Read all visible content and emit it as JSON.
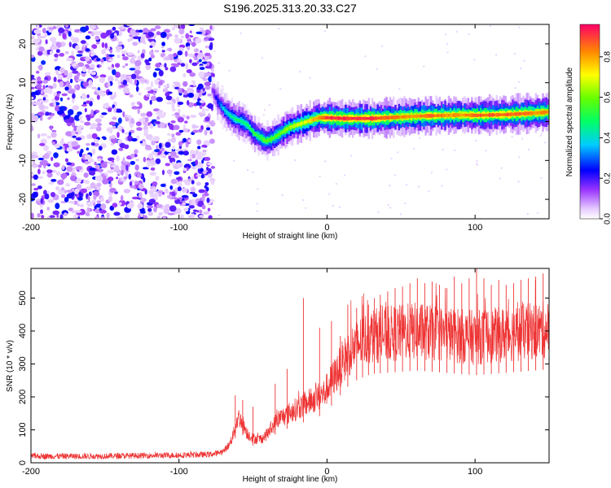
{
  "title": "S196.2025.313.20.33.C27",
  "chart_data": [
    {
      "type": "heatmap",
      "name": "spectrogram",
      "xlabel": "Height of straight line (km)",
      "ylabel": "Frequency (Hz)",
      "xlim": [
        -200,
        150
      ],
      "ylim": [
        -25,
        25
      ],
      "xticks": [
        -200,
        -100,
        0,
        100
      ],
      "yticks": [
        -20,
        -10,
        0,
        10,
        20
      ],
      "colorbar": {
        "label": "Normalized spectral amplitude",
        "range": [
          0.0,
          0.96
        ],
        "ticks": [
          0.0,
          0.2,
          0.4,
          0.6,
          0.8
        ],
        "tick_labels": [
          "0.0",
          "0.2",
          "0.4",
          "0.6",
          "0.8"
        ]
      },
      "noise_region": {
        "x_from": -200,
        "x_to": -77,
        "description_amplitude": [
          0.05,
          0.3
        ]
      },
      "ridge": {
        "x": [
          -78,
          -74,
          -70,
          -66,
          -62,
          -58,
          -54,
          -50,
          -46,
          -42,
          -38,
          -34,
          -30,
          -26,
          -22,
          -18,
          -14,
          -10,
          -6,
          -2,
          0,
          10,
          20,
          30,
          40,
          50,
          60,
          70,
          80,
          90,
          100,
          110,
          120,
          130,
          140,
          150
        ],
        "freq": [
          8.0,
          5.0,
          3.0,
          1.5,
          0.5,
          0.0,
          -1.0,
          -3.0,
          -4.0,
          -5.0,
          -4.5,
          -3.5,
          -2.5,
          -1.5,
          -1.0,
          -0.5,
          0.0,
          0.5,
          1.0,
          1.0,
          1.0,
          0.8,
          0.8,
          0.8,
          1.0,
          1.2,
          1.4,
          1.5,
          1.6,
          1.7,
          1.6,
          1.7,
          1.8,
          2.0,
          2.2,
          2.5
        ],
        "amplitude": [
          0.15,
          0.3,
          0.4,
          0.45,
          0.5,
          0.5,
          0.5,
          0.55,
          0.55,
          0.6,
          0.6,
          0.6,
          0.65,
          0.65,
          0.7,
          0.7,
          0.75,
          0.8,
          0.85,
          0.9,
          0.95,
          0.95,
          0.95,
          0.95,
          0.9,
          0.85,
          0.85,
          0.9,
          0.85,
          0.85,
          0.9,
          0.9,
          0.9,
          0.9,
          0.85,
          0.85
        ]
      }
    },
    {
      "type": "line",
      "name": "snr",
      "xlabel": "Height of straight line (km)",
      "ylabel": "SNR (10 * v/v)",
      "xlim": [
        -200,
        150
      ],
      "ylim": [
        0,
        590
      ],
      "xticks": [
        -200,
        -100,
        0,
        100
      ],
      "yticks": [
        0,
        100,
        200,
        300,
        400,
        500
      ],
      "color": "#ee3333",
      "series": [
        {
          "name": "SNR",
          "x": [
            -200,
            -180,
            -160,
            -140,
            -120,
            -100,
            -90,
            -80,
            -75,
            -70,
            -66,
            -63,
            -60,
            -57,
            -54,
            -50,
            -46,
            -42,
            -38,
            -34,
            -30,
            -26,
            -22,
            -18,
            -14,
            -10,
            -6,
            -2,
            2,
            6,
            10,
            14,
            18,
            22,
            26,
            30,
            40,
            50,
            60,
            70,
            80,
            90,
            100,
            110,
            120,
            130,
            140,
            150
          ],
          "y": [
            20,
            20,
            20,
            21,
            22,
            23,
            24,
            25,
            28,
            35,
            55,
            90,
            140,
            120,
            90,
            75,
            70,
            80,
            100,
            130,
            140,
            150,
            160,
            170,
            180,
            190,
            200,
            210,
            240,
            270,
            300,
            330,
            350,
            365,
            375,
            385,
            390,
            395,
            400,
            395,
            390,
            385,
            380,
            385,
            390,
            395,
            400,
            405
          ]
        }
      ],
      "spikes": {
        "x": [
          -62,
          -57,
          -50,
          -35,
          -27,
          -16,
          -5,
          3,
          9,
          14,
          20,
          24,
          28,
          32,
          36,
          41,
          46,
          51,
          56,
          61,
          66,
          71,
          76,
          81,
          86,
          91,
          96,
          101,
          106,
          111,
          116,
          121,
          126,
          131,
          136,
          141,
          146
        ],
        "y": [
          205,
          190,
          170,
          240,
          285,
          500,
          410,
          430,
          385,
          480,
          470,
          480,
          480,
          500,
          510,
          520,
          530,
          535,
          545,
          560,
          545,
          550,
          540,
          530,
          565,
          545,
          560,
          590,
          560,
          540,
          555,
          540,
          545,
          555,
          560,
          565,
          575
        ]
      }
    }
  ]
}
